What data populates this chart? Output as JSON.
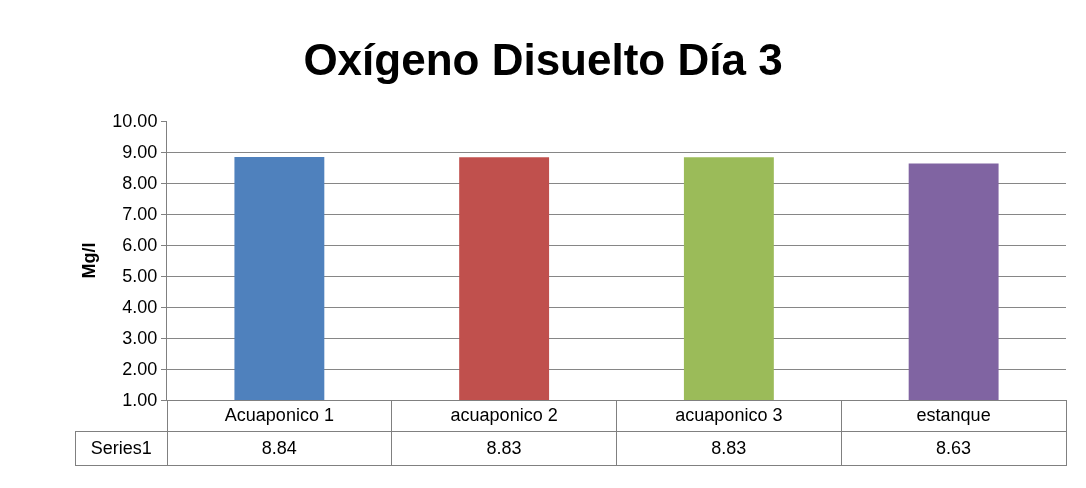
{
  "chart_data": {
    "type": "bar",
    "title": "Oxígeno Disuelto Día 3",
    "ylabel": "Mg/l",
    "categories": [
      "Acuaponico 1",
      "acuaponico 2",
      "acuaponico 3",
      "estanque"
    ],
    "series": [
      {
        "name": "Series1",
        "values": [
          8.84,
          8.83,
          8.83,
          8.63
        ],
        "colors": [
          "#4f81bd",
          "#c0504d",
          "#9bbb59",
          "#8064a2"
        ]
      }
    ],
    "ylim": [
      1,
      10
    ],
    "yticks": [
      {
        "value": 1,
        "label": "1.00"
      },
      {
        "value": 2,
        "label": "2.00"
      },
      {
        "value": 3,
        "label": "3.00"
      },
      {
        "value": 4,
        "label": "4.00"
      },
      {
        "value": 5,
        "label": "5.00"
      },
      {
        "value": 6,
        "label": "6.00"
      },
      {
        "value": 7,
        "label": "7.00"
      },
      {
        "value": 8,
        "label": "8.00"
      },
      {
        "value": 9,
        "label": "9.00"
      },
      {
        "value": 10,
        "label": "10.00"
      }
    ],
    "grid": "y",
    "data_labels": true
  }
}
